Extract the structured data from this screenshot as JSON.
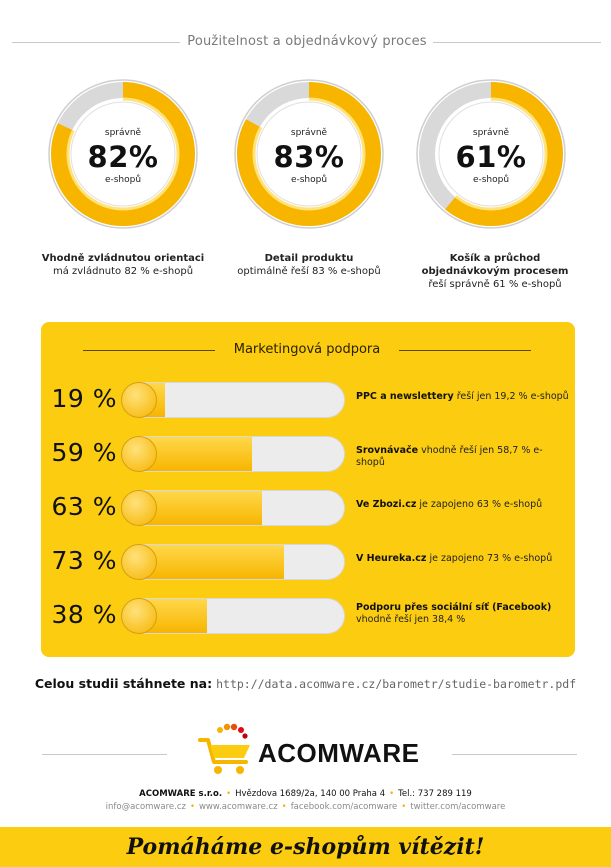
{
  "top_heading": "Použitelnost a objednávkový proces",
  "gauges": [
    {
      "label_top": "správně",
      "value": "82%",
      "percent": 82,
      "label_bottom": "e-shopů",
      "caption_title": "Vhodně zvládnutou orientaci",
      "caption_text": "má zvládnuto 82 %  e-shopů"
    },
    {
      "label_top": "správně",
      "value": "83%",
      "percent": 83,
      "label_bottom": "e-shopů",
      "caption_title": "Detail produktu",
      "caption_text": "optimálně řeší 83 % e-shopů"
    },
    {
      "label_top": "správně",
      "value": "61%",
      "percent": 61,
      "label_bottom": "e-shopů",
      "caption_title": "Košík a průchod objednávkovým procesem",
      "caption_text": "řeší správně 61 % e-shopů"
    }
  ],
  "marketing": {
    "heading": "Marketingová podpora",
    "bars": [
      {
        "value": "19 %",
        "percent": 19.2,
        "title": "PPC a newslettery",
        "text": "řeší jen 19,2 % e-shopů"
      },
      {
        "value": "59 %",
        "percent": 58.7,
        "title": "Srovnávače",
        "text": "vhodně řeší jen 58,7 %  e-shopů"
      },
      {
        "value": "63 %",
        "percent": 63,
        "title": "Ve Zbozi.cz",
        "text": "je zapojeno 63 % e-shopů"
      },
      {
        "value": "73 %",
        "percent": 73,
        "title": "V Heureka.cz",
        "text": "je zapojeno 73 % e-shopů"
      },
      {
        "value": "38 %",
        "percent": 38.4,
        "title": "Podporu přes sociální síť (Facebook)",
        "text": "vhodně řeší jen 38,4 %"
      }
    ]
  },
  "download": {
    "label": "Celou studii stáhnete na:",
    "url": "http://data.acomware.cz/barometr/studie-barometr.pdf"
  },
  "logo": {
    "brand": "ACOMWARE"
  },
  "company": {
    "name": "ACOMWARE s.r.o.",
    "address": "Hvězdova 1689/2a, 140 00 Praha 4",
    "phone": "Tel.: 737 289 119"
  },
  "links": [
    "info@acomware.cz",
    "www.acomware.cz",
    "facebook.com/acomware",
    "twitter.com/acomware"
  ],
  "slogan": "Pomáháme e-shopům vítězit!",
  "colors": {
    "accent": "#fbcc10",
    "ring_fill": "#f7b500",
    "ring_track": "#d9d9d9"
  }
}
